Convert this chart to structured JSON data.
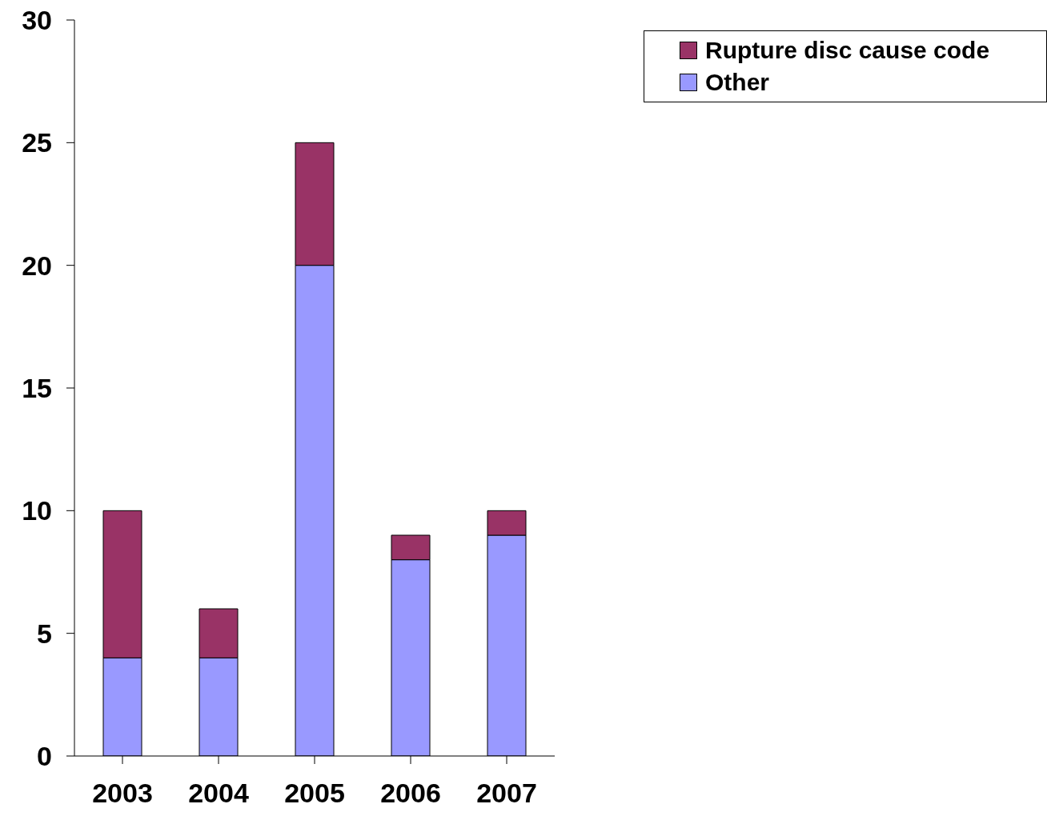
{
  "chart_data": {
    "type": "bar",
    "stacked": true,
    "categories": [
      "2003",
      "2004",
      "2005",
      "2006",
      "2007"
    ],
    "series": [
      {
        "name": "Other",
        "color": "#9999ff",
        "values": [
          4,
          4,
          20,
          8,
          9
        ]
      },
      {
        "name": "Rupture disc cause code",
        "color": "#993366",
        "values": [
          6,
          2,
          5,
          1,
          1
        ]
      }
    ],
    "ylim": [
      0,
      30
    ],
    "yticks": [
      0,
      5,
      10,
      15,
      20,
      25,
      30
    ],
    "grid": false,
    "legend": "top right"
  }
}
